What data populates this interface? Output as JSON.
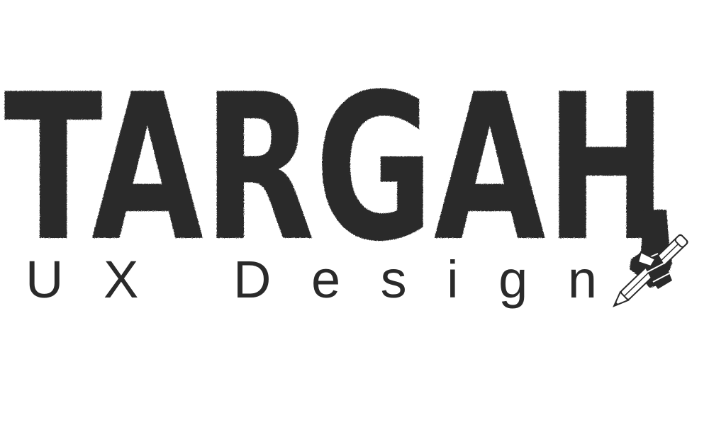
{
  "logo": {
    "wordmark": "TARGAH",
    "tagline": "UX Design",
    "ink_color": "#2a2a2a",
    "background_color": "#ffffff",
    "icon": "hand-holding-pencil-icon"
  }
}
